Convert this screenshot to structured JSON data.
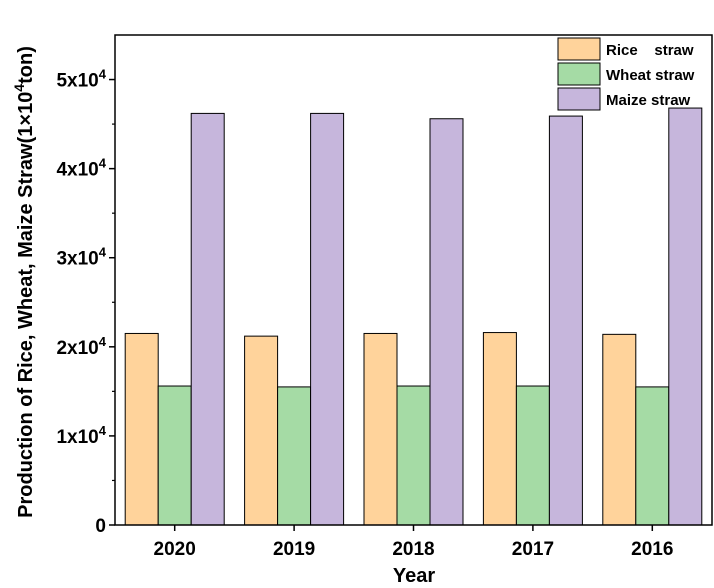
{
  "chart_data": {
    "type": "bar",
    "categories": [
      "2020",
      "2019",
      "2018",
      "2017",
      "2016"
    ],
    "series": [
      {
        "name": "Rice    straw",
        "values": [
          21500,
          21200,
          21500,
          21600,
          21400
        ],
        "color": "#ffd39b"
      },
      {
        "name": "Wheat straw",
        "values": [
          15600,
          15500,
          15600,
          15600,
          15500
        ],
        "color": "#a5dba5"
      },
      {
        "name": "Maize straw",
        "values": [
          46200,
          46200,
          45600,
          45900,
          46800
        ],
        "color": "#c6b6dc"
      }
    ],
    "xlabel": "Year",
    "ylabel": "Production of  Rice, Wheat, Maize Straw(1×10⁴ton)",
    "ylim": [
      0,
      55000
    ],
    "yticks": [
      {
        "value": 0,
        "label": "0"
      },
      {
        "value": 10000,
        "base": "1x10",
        "exp": "4"
      },
      {
        "value": 20000,
        "base": "2x10",
        "exp": "4"
      },
      {
        "value": 30000,
        "base": "3x10",
        "exp": "4"
      },
      {
        "value": 40000,
        "base": "4x10",
        "exp": "4"
      },
      {
        "value": 50000,
        "base": "5x10",
        "exp": "4"
      }
    ],
    "grid": false,
    "legend": "top-right"
  }
}
